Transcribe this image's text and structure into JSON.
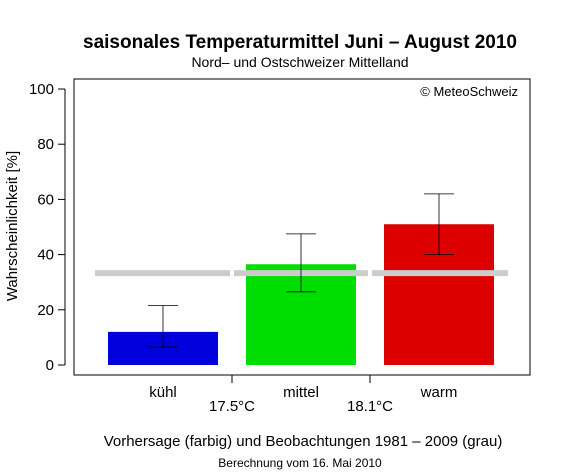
{
  "chart_data": {
    "type": "bar",
    "title": "saisonales Temperaturmittel Juni – August 2010",
    "subtitle": "Nord– und Ostschweizer Mittelland",
    "ylabel": "Wahrscheinlichkeit [%]",
    "ylim": [
      0,
      100
    ],
    "yticks": [
      0,
      20,
      40,
      60,
      80,
      100
    ],
    "categories": [
      "kühl",
      "mittel",
      "warm"
    ],
    "values": [
      12,
      36.5,
      51
    ],
    "error_low": [
      6.5,
      26.5,
      40
    ],
    "error_high": [
      21.5,
      47.5,
      62
    ],
    "colors": [
      "#0000dd",
      "#00dd00",
      "#dd0000"
    ],
    "climatology_value": 33.3,
    "climatology_color": "#cccccc",
    "thresholds": [
      "17.5°C",
      "18.1°C"
    ],
    "credit": "© MeteoSchweiz",
    "footer": "Vorhersage (farbig) und Beobachtungen 1981 – 2009 (grau)",
    "footer2": "Berechnung vom 16. Mai 2010",
    "grid": false
  }
}
